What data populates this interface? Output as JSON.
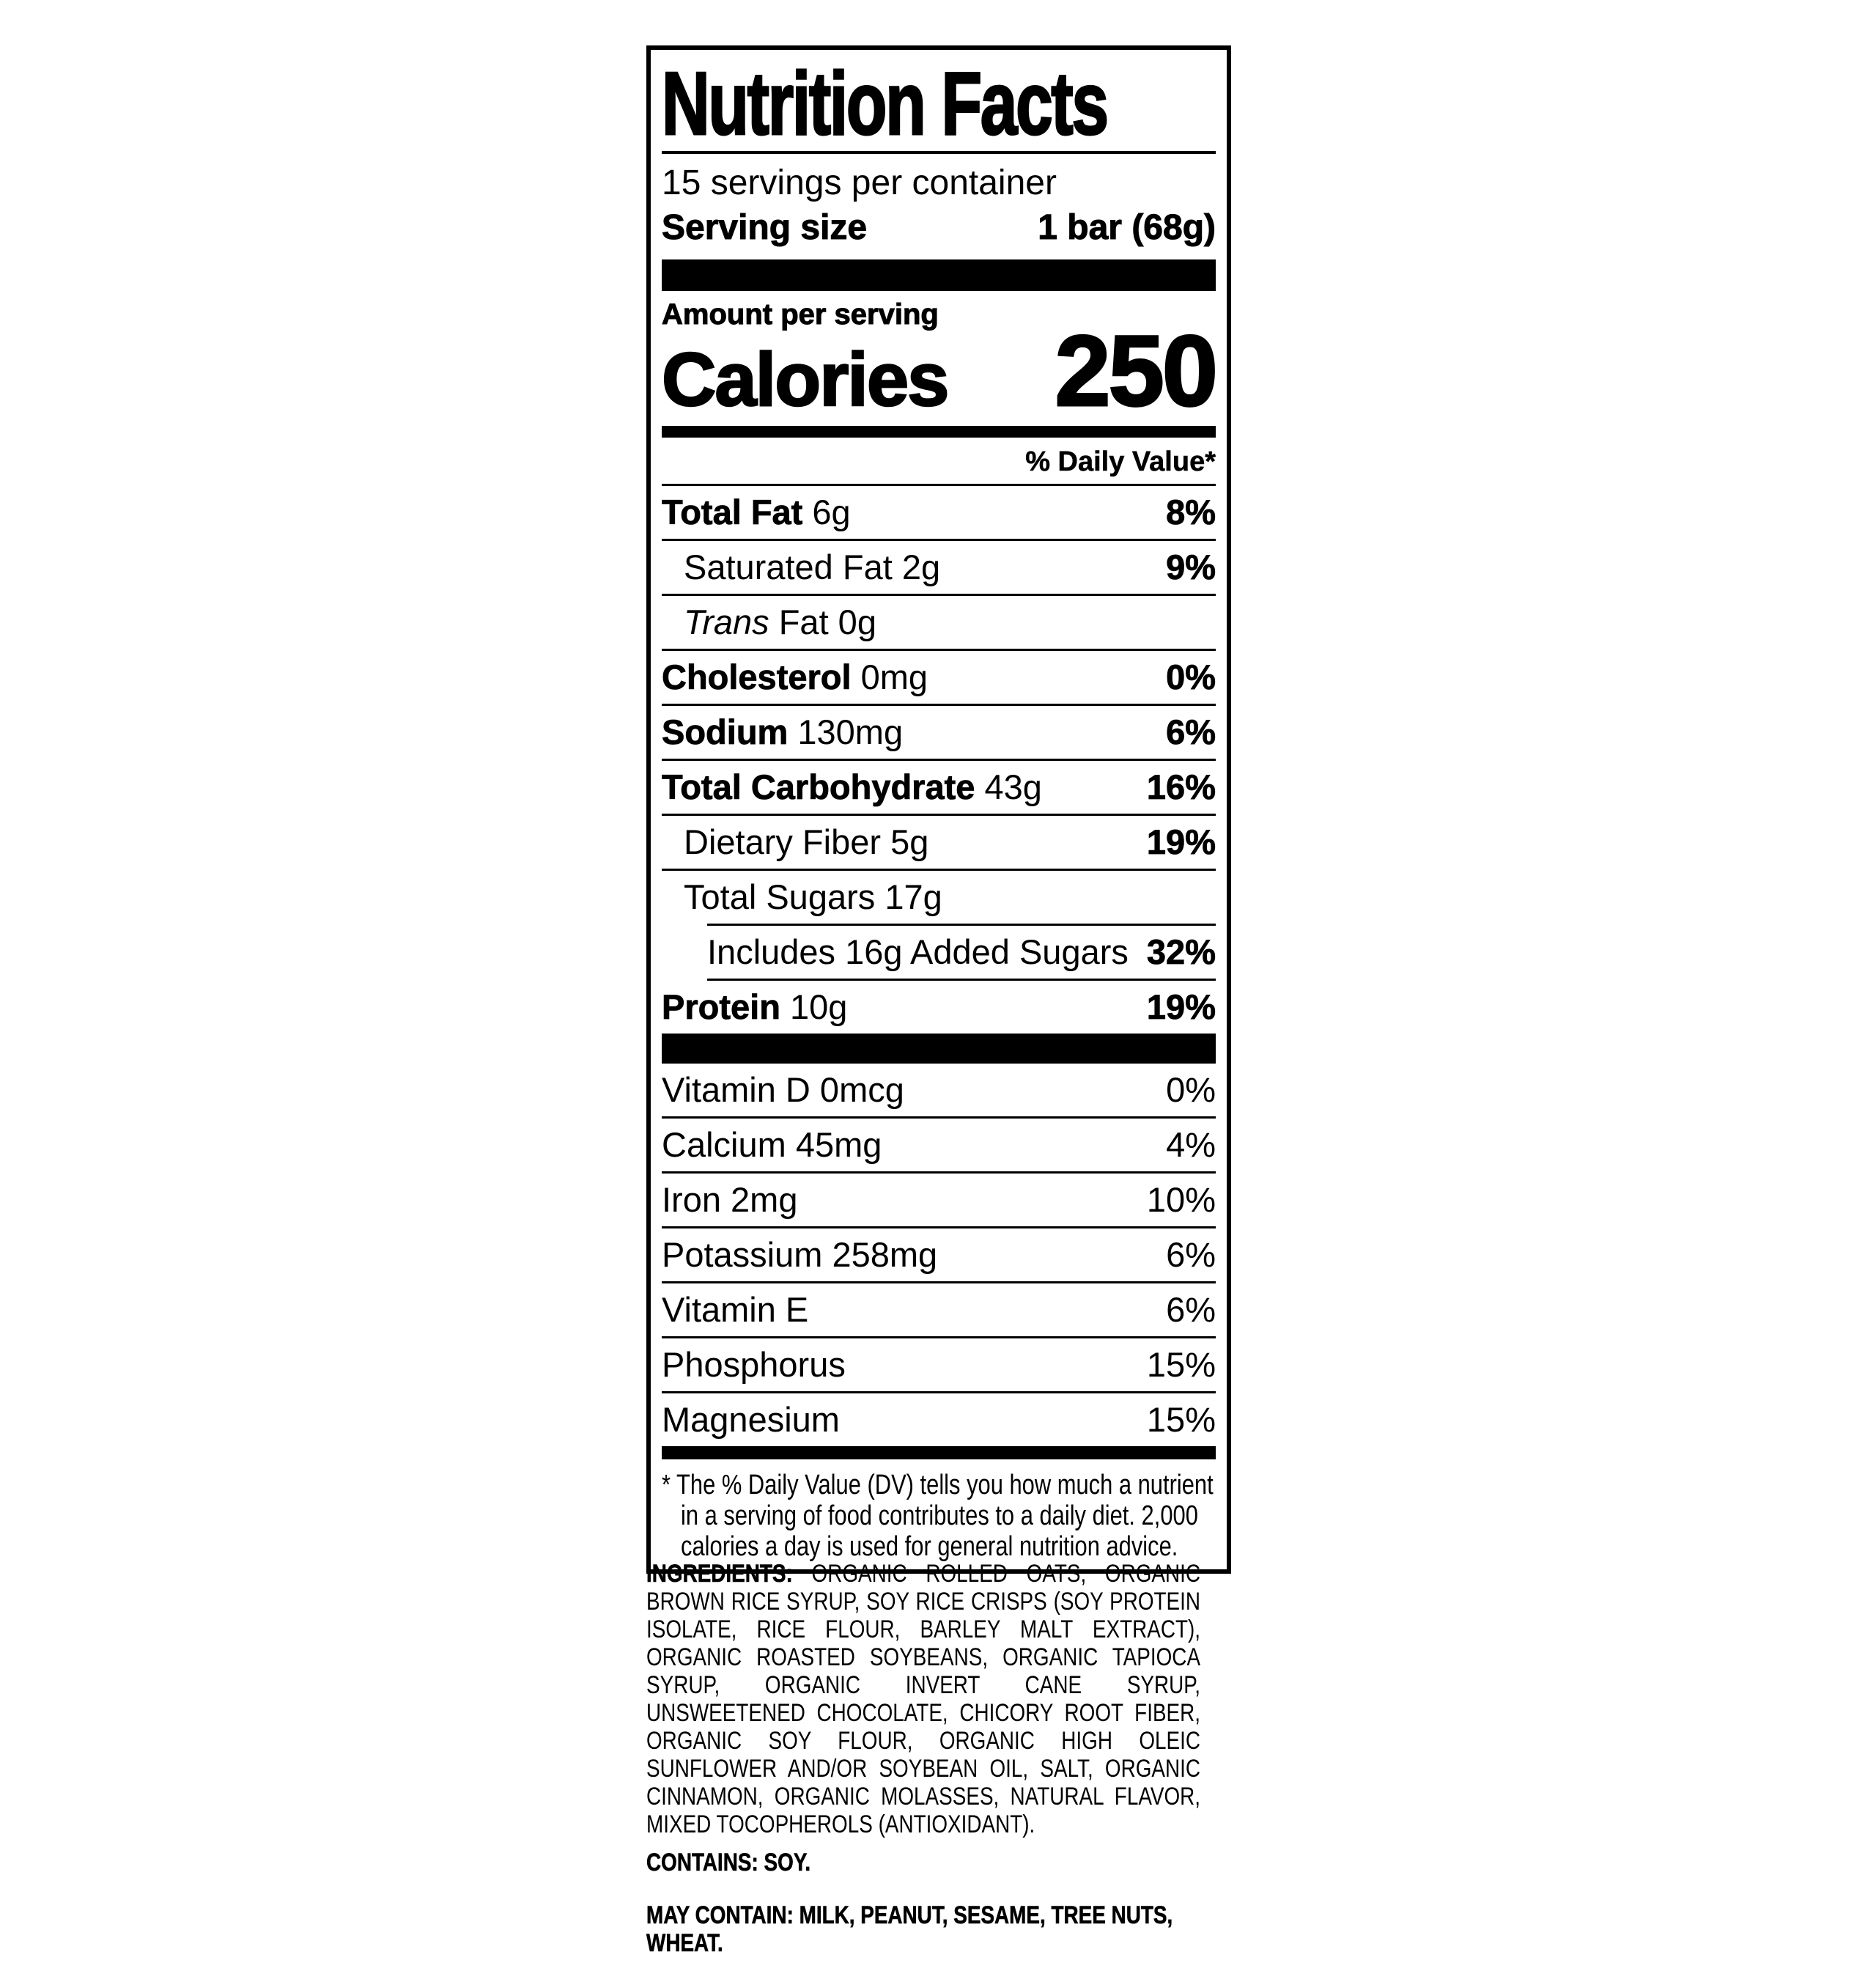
{
  "panel": {
    "title": "Nutrition Facts",
    "servings_per_container": "15 servings per container",
    "serving_size": {
      "label": "Serving size",
      "value": "1 bar (68g)"
    },
    "amount_per_serving": "Amount per serving",
    "calories": {
      "label": "Calories",
      "value": "250"
    },
    "daily_value_header": "% Daily Value*",
    "rows": [
      {
        "name": "Total Fat",
        "amount": "6g",
        "dv": "8%"
      },
      {
        "name": "Saturated Fat",
        "amount": "2g",
        "dv": "9%"
      },
      {
        "name_italic": "Trans",
        "amount": " Fat 0g",
        "dv": ""
      },
      {
        "name": "Cholesterol",
        "amount": "0mg",
        "dv": "0%"
      },
      {
        "name": "Sodium",
        "amount": "130mg",
        "dv": "6%"
      },
      {
        "name": "Total Carbohydrate",
        "amount": "43g",
        "dv": "16%"
      },
      {
        "name": "Dietary Fiber",
        "amount": "5g",
        "dv": "19%"
      },
      {
        "name": "Total Sugars",
        "amount": "17g",
        "dv": ""
      },
      {
        "name": "Includes 16g Added Sugars",
        "amount": "",
        "dv": "32%"
      },
      {
        "name": "Protein",
        "amount": "10g",
        "dv": "19%"
      }
    ],
    "micronutrients": [
      {
        "name": "Vitamin D 0mcg",
        "dv": "0%"
      },
      {
        "name": "Calcium 45mg",
        "dv": "4%"
      },
      {
        "name": "Iron 2mg",
        "dv": "10%"
      },
      {
        "name": "Potassium 258mg",
        "dv": "6%"
      },
      {
        "name": "Vitamin E",
        "dv": "6%"
      },
      {
        "name": "Phosphorus",
        "dv": "15%"
      },
      {
        "name": "Magnesium",
        "dv": "15%"
      }
    ],
    "footnote": "* The % Daily Value (DV) tells you how much a nutrient in a serving of food contributes to a daily diet. 2,000 calories a day is used for general nutrition advice."
  },
  "ingredients": {
    "heading": "INGREDIENTS:",
    "text": " ORGANIC ROLLED OATS, ORGANIC BROWN RICE SYRUP, SOY RICE CRISPS (SOY PROTEIN ISOLATE, RICE FLOUR, BARLEY MALT EXTRACT), ORGANIC ROASTED SOYBEANS, ORGANIC TAPIOCA SYRUP, ORGANIC INVERT CANE SYRUP, UNSWEETENED CHOCOLATE, CHICORY ROOT FIBER, ORGANIC SOY FLOUR, ORGANIC HIGH OLEIC SUNFLOWER AND/OR SOYBEAN OIL, SALT, ORGANIC CINNAMON, ORGANIC MOLASSES, NATURAL FLAVOR, MIXED TOCOPHEROLS (ANTIOXIDANT).",
    "contains": "CONTAINS: SOY.",
    "may_contain": "MAY CONTAIN: MILK, PEANUT, SESAME, TREE NUTS, WHEAT."
  },
  "colors": {
    "text": "#000000",
    "background": "#ffffff"
  }
}
